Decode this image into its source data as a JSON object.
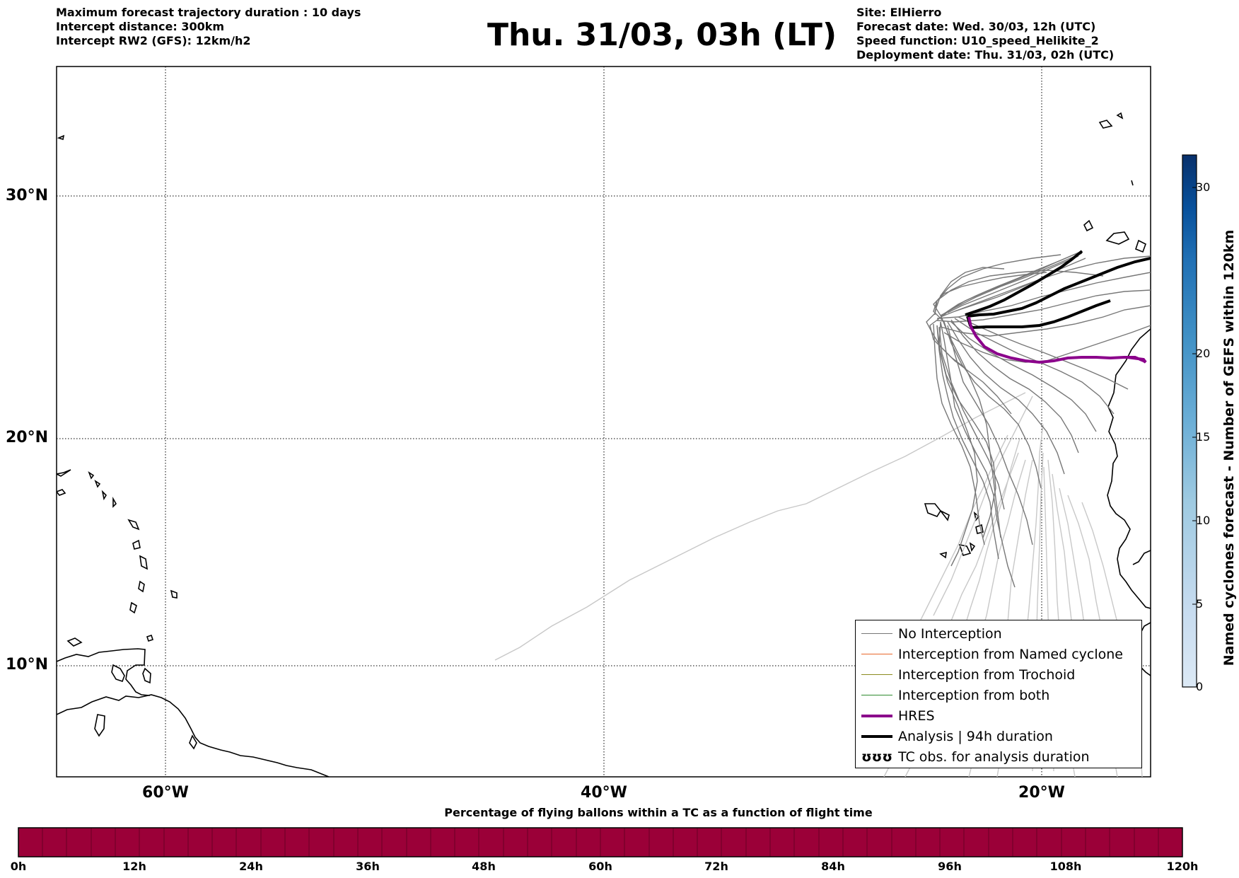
{
  "header": {
    "left_lines": [
      "Maximum forecast trajectory duration : 10 days",
      "Intercept distance: 300km",
      "Intercept RW2 (GFS):  12km/h2"
    ],
    "title": "Thu. 31/03, 03h (LT)",
    "right_lines": [
      "Site: ElHierro",
      "Forecast date: Wed. 30/03, 12h (UTC)",
      "Speed function: U10_speed_Helikite_2",
      "Deployment date: Thu. 31/03, 02h (UTC)"
    ]
  },
  "map": {
    "lat_labels": [
      "30°N",
      "20°N",
      "10°N"
    ],
    "lon_labels": [
      "60°W",
      "40°W",
      "20°W"
    ],
    "grid": true
  },
  "legend": {
    "items": [
      {
        "label": "No Interception",
        "color": "#777777",
        "style": "thin"
      },
      {
        "label": "Interception from Named cyclone",
        "color": "#e8662a",
        "style": "thin"
      },
      {
        "label": "Interception from Trochoid",
        "color": "#8b8b1f",
        "style": "thin"
      },
      {
        "label": "Interception from both",
        "color": "#2e8b2e",
        "style": "thin"
      },
      {
        "label": "HRES",
        "color": "#8b008b",
        "style": "thick"
      },
      {
        "label": "Analysis | 94h duration",
        "color": "#000000",
        "style": "thick"
      },
      {
        "label": "TC obs. for analysis duration",
        "color": "#000000",
        "style": "symbol",
        "symbol": "ʊʊʊ"
      }
    ]
  },
  "horizontal_colorbar": {
    "title": "Percentage of flying ballons within a TC as a function of flight time",
    "tick_labels": [
      "0h",
      "12h",
      "24h",
      "36h",
      "48h",
      "60h",
      "72h",
      "84h",
      "96h",
      "108h",
      "120h"
    ],
    "fill_color": "#9b0038"
  },
  "vertical_colorbar": {
    "label": "Named cyclones forecast - Number of GEFS within 120km",
    "tick_labels": [
      "0",
      "5",
      "10",
      "15",
      "20",
      "30"
    ],
    "colors": [
      "#dce9f5",
      "#c6dbef",
      "#9ecae1",
      "#6baed6",
      "#4292c6",
      "#2171b5",
      "#08519c",
      "#08306b"
    ]
  }
}
